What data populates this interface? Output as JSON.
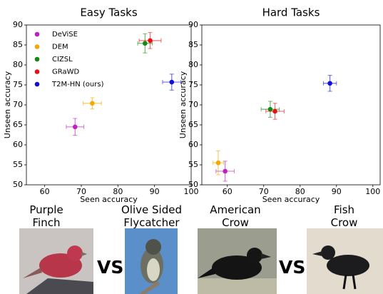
{
  "chart_data": [
    {
      "type": "scatter",
      "title": "Easy Tasks",
      "x_label": "Seen accuracy",
      "y_label": "Unseen accuracy",
      "xlim": [
        55,
        100
      ],
      "xticks": [
        60,
        70,
        80,
        90,
        100
      ],
      "ylim": [
        50,
        90
      ],
      "yticks": [
        50,
        55,
        60,
        65,
        70,
        75,
        80,
        85,
        90
      ],
      "legend": "upper left",
      "series": [
        {
          "name": "DeViSE",
          "color": "#c020c0",
          "x": [
            68.3
          ],
          "y": [
            64.5
          ],
          "xerr": [
            2.4
          ],
          "yerr": [
            2.1
          ]
        },
        {
          "name": "DEM",
          "color": "#f5a800",
          "x": [
            73.0
          ],
          "y": [
            70.4
          ],
          "xerr": [
            2.5
          ],
          "yerr": [
            1.4
          ]
        },
        {
          "name": "CIZSL",
          "color": "#138a13",
          "x": [
            87.4
          ],
          "y": [
            85.4
          ],
          "xerr": [
            2.0
          ],
          "yerr": [
            2.4
          ]
        },
        {
          "name": "GRaWD",
          "color": "#e81010",
          "x": [
            88.8
          ],
          "y": [
            86.1
          ],
          "xerr": [
            3.0
          ],
          "yerr": [
            2.0
          ]
        },
        {
          "name": "T2M-HN (ours)",
          "color": "#1010d8",
          "x": [
            94.7
          ],
          "y": [
            75.7
          ],
          "xerr": [
            2.5
          ],
          "yerr": [
            2.0
          ]
        }
      ]
    },
    {
      "type": "scatter",
      "title": "Hard Tasks",
      "x_label": "Seen accuracy",
      "y_label": "Unseen accuracy",
      "xlim": [
        53,
        102
      ],
      "xticks": [
        60,
        70,
        80,
        90,
        100
      ],
      "ylim": [
        50,
        90
      ],
      "yticks": [
        50,
        55,
        60,
        65,
        70,
        75,
        80,
        85,
        90
      ],
      "series": [
        {
          "color": "#c020c0",
          "x": [
            59.4
          ],
          "y": [
            53.4
          ],
          "xerr": [
            2.5
          ],
          "yerr": [
            2.5
          ]
        },
        {
          "color": "#f5a800",
          "x": [
            57.5
          ],
          "y": [
            55.5
          ],
          "xerr": [
            1.5
          ],
          "yerr": [
            3.0
          ]
        },
        {
          "color": "#138a13",
          "x": [
            71.8
          ],
          "y": [
            68.9
          ],
          "xerr": [
            2.5
          ],
          "yerr": [
            2.0
          ]
        },
        {
          "color": "#e81010",
          "x": [
            73.1
          ],
          "y": [
            68.4
          ],
          "xerr": [
            2.5
          ],
          "yerr": [
            2.0
          ]
        },
        {
          "color": "#1010d8",
          "x": [
            88.2
          ],
          "y": [
            75.4
          ],
          "xerr": [
            1.8
          ],
          "yerr": [
            2.0
          ]
        }
      ]
    }
  ],
  "comparisons": {
    "captions": [
      "Purple Finch",
      "Olive Sided Flycatcher",
      "American Crow",
      "Fish Crow"
    ],
    "separator": "VS"
  }
}
